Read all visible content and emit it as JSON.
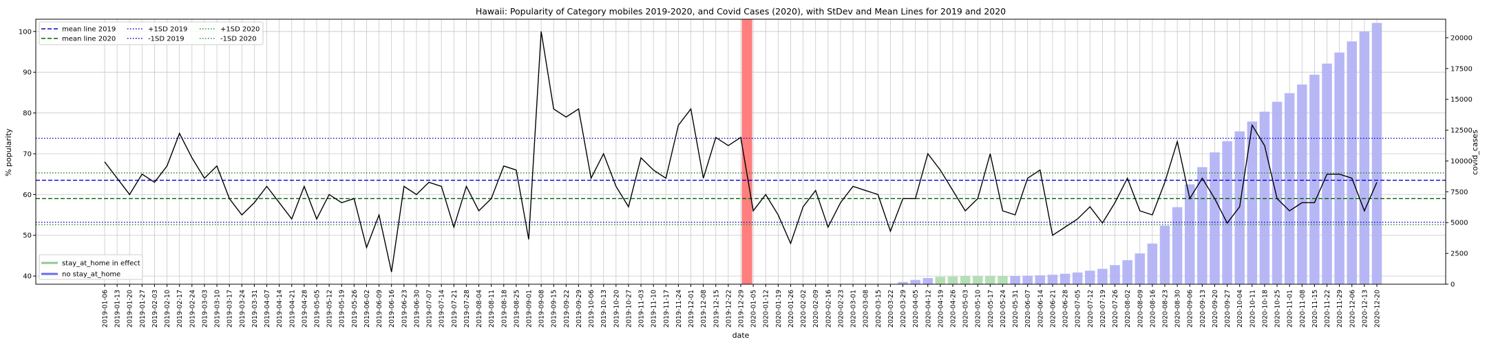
{
  "chart_data": {
    "type": "line+bar",
    "title": "Hawaii: Popularity of Category mobiles 2019-2020, and Covid Cases (2020), with StDev and Mean Lines for 2019 and 2020",
    "xlabel": "date",
    "ylabel_left": "% popularity",
    "ylabel_right": "covid_cases",
    "ylim_left": [
      38,
      103
    ],
    "ylim_right": [
      0,
      21500
    ],
    "yticks_left": [
      40,
      50,
      60,
      70,
      80,
      90,
      100
    ],
    "yticks_right": [
      0,
      2500,
      5000,
      7500,
      10000,
      12500,
      15000,
      17500,
      20000
    ],
    "grid": true,
    "dates": [
      "2019-01-06",
      "2019-01-13",
      "2019-01-20",
      "2019-01-27",
      "2019-02-03",
      "2019-02-10",
      "2019-02-17",
      "2019-02-24",
      "2019-03-03",
      "2019-03-10",
      "2019-03-17",
      "2019-03-24",
      "2019-03-31",
      "2019-04-07",
      "2019-04-14",
      "2019-04-21",
      "2019-04-28",
      "2019-05-05",
      "2019-05-12",
      "2019-05-19",
      "2019-05-26",
      "2019-06-02",
      "2019-06-09",
      "2019-06-16",
      "2019-06-23",
      "2019-06-30",
      "2019-07-07",
      "2019-07-14",
      "2019-07-21",
      "2019-07-28",
      "2019-08-04",
      "2019-08-11",
      "2019-08-18",
      "2019-08-25",
      "2019-09-01",
      "2019-09-08",
      "2019-09-15",
      "2019-09-22",
      "2019-09-29",
      "2019-10-06",
      "2019-10-13",
      "2019-10-20",
      "2019-10-27",
      "2019-11-03",
      "2019-11-10",
      "2019-11-17",
      "2019-11-24",
      "2019-12-01",
      "2019-12-08",
      "2019-12-15",
      "2019-12-22",
      "2019-12-29",
      "2020-01-05",
      "2020-01-12",
      "2020-01-19",
      "2020-01-26",
      "2020-02-02",
      "2020-02-09",
      "2020-02-16",
      "2020-02-23",
      "2020-03-01",
      "2020-03-08",
      "2020-03-15",
      "2020-03-22",
      "2020-03-29",
      "2020-04-05",
      "2020-04-12",
      "2020-04-19",
      "2020-04-26",
      "2020-05-03",
      "2020-05-10",
      "2020-05-17",
      "2020-05-24",
      "2020-05-31",
      "2020-06-07",
      "2020-06-14",
      "2020-06-21",
      "2020-06-28",
      "2020-07-05",
      "2020-07-12",
      "2020-07-19",
      "2020-07-26",
      "2020-08-02",
      "2020-08-09",
      "2020-08-16",
      "2020-08-23",
      "2020-08-30",
      "2020-09-06",
      "2020-09-13",
      "2020-09-20",
      "2020-09-27",
      "2020-10-04",
      "2020-10-11",
      "2020-10-18",
      "2020-10-25",
      "2020-11-01",
      "2020-11-08",
      "2020-11-15",
      "2020-11-22",
      "2020-11-29",
      "2020-12-06",
      "2020-12-13",
      "2020-12-20"
    ],
    "popularity": [
      68,
      64,
      60,
      65,
      63,
      67,
      75,
      69,
      64,
      67,
      59,
      55,
      58,
      62,
      58,
      54,
      62,
      54,
      60,
      58,
      59,
      47,
      55,
      41,
      62,
      60,
      63,
      62,
      52,
      62,
      56,
      59,
      67,
      66,
      49,
      100,
      81,
      79,
      81,
      64,
      70,
      62,
      57,
      69,
      66,
      64,
      77,
      81,
      64,
      74,
      72,
      74,
      56,
      60,
      55,
      48,
      57,
      61,
      52,
      58,
      62,
      61,
      60,
      51,
      59,
      59,
      70,
      66,
      61,
      56,
      59,
      70,
      56,
      55,
      64,
      66,
      50,
      52,
      54,
      57,
      53,
      58,
      64,
      56,
      55,
      63,
      73,
      59,
      64,
      59,
      53,
      57,
      77,
      72,
      59,
      56,
      58,
      58,
      65,
      65,
      64,
      56,
      63
    ],
    "covid_cases": [
      null,
      null,
      null,
      null,
      null,
      null,
      null,
      null,
      null,
      null,
      null,
      null,
      null,
      null,
      null,
      null,
      null,
      null,
      null,
      null,
      null,
      null,
      null,
      null,
      null,
      null,
      null,
      null,
      null,
      null,
      null,
      null,
      null,
      null,
      null,
      null,
      null,
      null,
      null,
      null,
      null,
      null,
      null,
      null,
      null,
      null,
      null,
      null,
      null,
      null,
      null,
      null,
      null,
      null,
      null,
      null,
      null,
      null,
      null,
      null,
      null,
      null,
      null,
      0,
      180,
      350,
      500,
      600,
      620,
      640,
      650,
      650,
      650,
      670,
      690,
      720,
      770,
      850,
      950,
      1100,
      1250,
      1550,
      1950,
      2500,
      3300,
      4750,
      6250,
      8100,
      9500,
      10700,
      11600,
      12400,
      13200,
      14000,
      14800,
      15500,
      16200,
      17000,
      17900,
      18800,
      19700,
      20500,
      21200
    ],
    "stay_at_home": [
      false,
      false,
      false,
      false,
      false,
      false,
      false,
      false,
      false,
      false,
      false,
      false,
      false,
      false,
      false,
      false,
      false,
      false,
      false,
      false,
      false,
      false,
      false,
      false,
      false,
      false,
      false,
      false,
      false,
      false,
      false,
      false,
      false,
      false,
      false,
      false,
      false,
      false,
      false,
      false,
      false,
      false,
      false,
      false,
      false,
      false,
      false,
      false,
      false,
      false,
      false,
      false,
      false,
      false,
      false,
      false,
      false,
      false,
      false,
      false,
      false,
      false,
      false,
      false,
      false,
      false,
      false,
      true,
      true,
      true,
      true,
      true,
      true,
      false,
      false,
      false,
      false,
      false,
      false,
      false,
      false,
      false,
      false,
      false,
      false,
      false,
      false,
      false,
      false,
      false,
      false,
      false,
      false,
      false,
      false,
      false,
      false,
      false,
      false,
      false,
      false,
      false,
      false
    ],
    "year_boundary_date": "2020-01-01",
    "reference_lines": [
      {
        "label": "mean line 2019",
        "value": 63.5,
        "color": "#0000cc",
        "style": "dashed"
      },
      {
        "label": "mean line 2020",
        "value": 59,
        "color": "#006400",
        "style": "dashed"
      },
      {
        "label": "+1SD 2019",
        "value": 73.8,
        "color": "#0000cc",
        "style": "dotted"
      },
      {
        "label": "-1SD 2019",
        "value": 53.2,
        "color": "#0000cc",
        "style": "dotted"
      },
      {
        "label": "+1SD 2020",
        "value": 65.3,
        "color": "#228b22",
        "style": "dotted"
      },
      {
        "label": "-1SD 2020",
        "value": 52.6,
        "color": "#228b22",
        "style": "dotted"
      }
    ],
    "legend_lines_label_order": [
      "mean line 2019",
      "mean line 2020",
      "+1SD 2019",
      "-1SD 2019",
      "+1SD 2020",
      "-1SD 2020"
    ],
    "legend_bars": [
      {
        "label": "stay_at_home in effect",
        "color": "#90c890"
      },
      {
        "label": "no stay_at_home",
        "color": "#6a6aee"
      }
    ],
    "colors": {
      "line": "#000000",
      "bar_no_stay": "#b3b3f5",
      "bar_stay": "#b2dcb2",
      "year_band": "#ff7f7f",
      "grid": "#c8c8c8"
    }
  }
}
